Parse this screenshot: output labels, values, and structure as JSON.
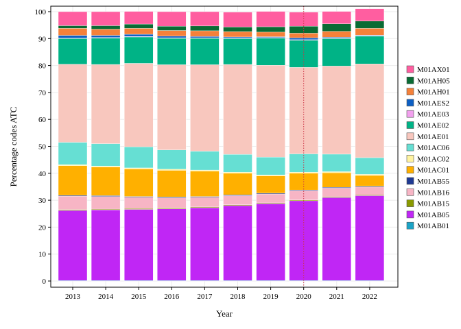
{
  "chart_data": {
    "type": "bar",
    "stacked": true,
    "xlabel": "Year",
    "ylabel": "Percentage codes ATC",
    "ylim": [
      0,
      100
    ],
    "yticks": [
      0,
      10,
      20,
      30,
      40,
      50,
      60,
      70,
      80,
      90,
      100
    ],
    "grid": true,
    "legend_position": "right",
    "reference_line": {
      "x": "2020",
      "style": "dotted",
      "color": "#cc3344"
    },
    "categories": [
      "2013",
      "2014",
      "2015",
      "2016",
      "2017",
      "2018",
      "2019",
      "2020",
      "2021",
      "2022"
    ],
    "series": [
      {
        "name": "M01AB01",
        "color": "#1ba3c6",
        "values": [
          0.2,
          0.2,
          0.2,
          0.2,
          0.2,
          0.2,
          0.2,
          0.2,
          0.2,
          0.2
        ]
      },
      {
        "name": "M01AB05",
        "color": "#c026f5",
        "values": [
          26.0,
          26.2,
          26.4,
          26.6,
          27.0,
          27.8,
          28.5,
          29.6,
          30.8,
          31.5
        ]
      },
      {
        "name": "M01AB15",
        "color": "#8a9a00",
        "values": [
          0.3,
          0.3,
          0.3,
          0.3,
          0.3,
          0.3,
          0.3,
          0.3,
          0.3,
          0.3
        ]
      },
      {
        "name": "M01AB16",
        "color": "#f7b5c5",
        "values": [
          5.0,
          4.7,
          4.2,
          3.8,
          3.6,
          3.4,
          3.3,
          3.4,
          3.2,
          2.9
        ]
      },
      {
        "name": "M01AB55",
        "color": "#1f3a93",
        "values": [
          0.3,
          0.3,
          0.3,
          0.3,
          0.3,
          0.3,
          0.3,
          0.3,
          0.3,
          0.3
        ]
      },
      {
        "name": "M01AC01",
        "color": "#ffb000",
        "values": [
          11.0,
          10.6,
          10.2,
          9.9,
          9.4,
          8.0,
          6.4,
          6.2,
          5.4,
          4.0
        ]
      },
      {
        "name": "M01AC02",
        "color": "#fff3a0",
        "values": [
          0.4,
          0.4,
          0.4,
          0.4,
          0.4,
          0.4,
          0.4,
          0.4,
          0.4,
          0.4
        ]
      },
      {
        "name": "M01AC06",
        "color": "#66dfd3",
        "values": [
          8.3,
          8.3,
          7.8,
          7.2,
          7.0,
          6.6,
          6.6,
          6.8,
          6.5,
          6.2
        ]
      },
      {
        "name": "M01AE01",
        "color": "#f8c7be",
        "values": [
          29.0,
          29.4,
          31.0,
          31.6,
          32.1,
          33.4,
          34.1,
          32.1,
          32.7,
          34.8
        ]
      },
      {
        "name": "M01AE02",
        "color": "#00b386",
        "values": [
          9.5,
          9.8,
          9.8,
          9.8,
          9.8,
          9.6,
          10.1,
          10.1,
          10.2,
          10.3
        ]
      },
      {
        "name": "M01AE03",
        "color": "#f2a0ee",
        "values": [
          0.2,
          0.2,
          0.2,
          0.2,
          0.2,
          0.2,
          0.2,
          0.2,
          0.2,
          0.2
        ]
      },
      {
        "name": "M01AES2",
        "color": "#0d5fc4",
        "values": [
          1.0,
          0.8,
          0.8,
          0.6,
          0.5,
          0.4,
          0.3,
          0.7,
          0.3,
          0.2
        ]
      },
      {
        "name": "M01AH01",
        "color": "#f5813a",
        "values": [
          2.6,
          2.3,
          2.2,
          2.1,
          2.1,
          2.0,
          1.7,
          1.7,
          2.2,
          2.5
        ]
      },
      {
        "name": "M01AH05",
        "color": "#0a6b34",
        "values": [
          1.0,
          1.3,
          1.6,
          1.6,
          1.8,
          1.7,
          2.0,
          2.6,
          2.8,
          2.7
        ]
      },
      {
        "name": "M01AX01",
        "color": "#ff5ea0",
        "values": [
          5.2,
          5.2,
          4.7,
          5.4,
          5.3,
          5.5,
          5.7,
          5.2,
          4.6,
          4.6
        ]
      }
    ],
    "legend_order": [
      "M01AX01",
      "M01AH05",
      "M01AH01",
      "M01AES2",
      "M01AE03",
      "M01AE02",
      "M01AE01",
      "M01AC06",
      "M01AC02",
      "M01AC01",
      "M01AB55",
      "M01AB16",
      "M01AB15",
      "M01AB05",
      "M01AB01"
    ]
  }
}
